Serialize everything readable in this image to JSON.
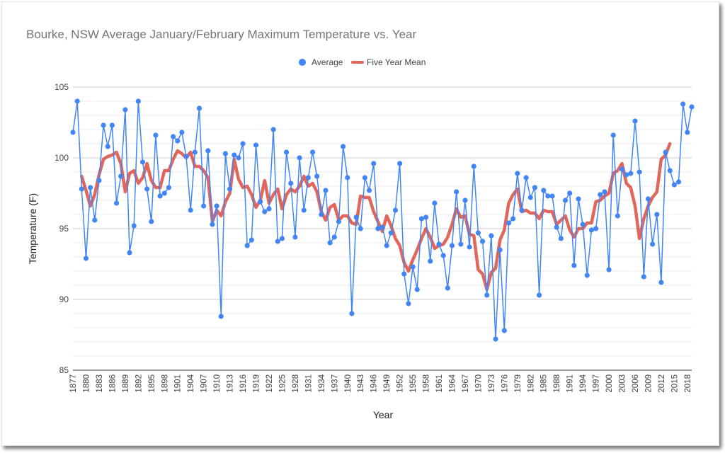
{
  "chart_data": {
    "type": "line",
    "title": "Bourke, NSW Average January/February Maximum Temperature vs. Year",
    "xlabel": "Year",
    "ylabel": "Temperature (F)",
    "ylim": [
      85,
      105
    ],
    "yticks": [
      "85",
      "90",
      "95",
      "100",
      "105"
    ],
    "xlim": [
      1877,
      2019
    ],
    "xticks": [
      "1877",
      "1880",
      "1883",
      "1886",
      "1889",
      "1892",
      "1895",
      "1898",
      "1901",
      "1904",
      "1907",
      "1910",
      "1913",
      "1916",
      "1919",
      "1922",
      "1925",
      "1928",
      "1931",
      "1934",
      "1937",
      "1940",
      "1943",
      "1946",
      "1949",
      "1952",
      "1955",
      "1958",
      "1961",
      "1964",
      "1967",
      "1970",
      "1973",
      "1976",
      "1979",
      "1982",
      "1985",
      "1988",
      "1991",
      "1994",
      "1997",
      "2000",
      "2003",
      "2006",
      "2009",
      "2012",
      "2015",
      "2018"
    ],
    "grid": true,
    "legend_position": "top",
    "series": [
      {
        "name": "Average",
        "color": "#4285f4",
        "style": "line-with-points",
        "x_start": 1877,
        "values": [
          101.8,
          104.0,
          97.8,
          92.9,
          97.9,
          95.6,
          98.4,
          102.3,
          100.8,
          102.3,
          96.8,
          98.7,
          103.4,
          93.3,
          95.2,
          104.0,
          99.7,
          97.8,
          95.5,
          101.6,
          97.3,
          97.5,
          97.9,
          101.5,
          101.2,
          101.8,
          100.1,
          96.3,
          100.4,
          103.5,
          96.6,
          100.5,
          95.3,
          96.6,
          88.8,
          100.3,
          97.8,
          100.2,
          100.0,
          101.0,
          93.8,
          94.2,
          100.9,
          96.9,
          96.2,
          96.4,
          102.0,
          94.1,
          94.3,
          100.4,
          98.2,
          94.4,
          100.0,
          96.3,
          98.6,
          100.4,
          98.7,
          96.0,
          97.7,
          94.0,
          94.4,
          95.5,
          100.8,
          98.6,
          89.0,
          95.8,
          95.0,
          98.6,
          97.7,
          99.6,
          95.0,
          95.1,
          93.8,
          94.7,
          96.3,
          99.6,
          91.8,
          89.7,
          92.3,
          90.7,
          95.7,
          95.8,
          92.7,
          96.8,
          93.9,
          93.1,
          90.8,
          93.8,
          97.6,
          93.9,
          97.0,
          93.7,
          99.4,
          94.7,
          94.1,
          90.3,
          94.5,
          87.2,
          93.5,
          87.8,
          95.4,
          95.7,
          98.9,
          96.3,
          98.6,
          97.2,
          97.9,
          90.3,
          97.7,
          97.3,
          97.3,
          95.1,
          94.3,
          97.0,
          97.5,
          92.4,
          97.1,
          95.3,
          91.7,
          94.9,
          95.0,
          97.4,
          97.6,
          92.1,
          101.6,
          95.9,
          99.2,
          98.8,
          98.9,
          102.6,
          99.0,
          91.6,
          97.1,
          93.9,
          96.0,
          91.2,
          100.4,
          99.1,
          98.1,
          98.3,
          103.8,
          101.8,
          103.6
        ]
      },
      {
        "name": "Five Year Mean",
        "color": "#db4437",
        "style": "thick-line",
        "x_start": 1879,
        "values": [
          98.7,
          97.7,
          96.6,
          97.4,
          98.8,
          99.9,
          100.1,
          100.2,
          100.4,
          99.6,
          97.6,
          98.9,
          99.1,
          98.2,
          98.6,
          99.6,
          98.4,
          97.9,
          97.9,
          99.1,
          99.1,
          99.9,
          100.5,
          100.3,
          100.0,
          100.4,
          99.4,
          99.4,
          99.1,
          98.6,
          95.5,
          96.3,
          95.9,
          96.9,
          97.5,
          99.9,
          98.5,
          97.9,
          98.0,
          97.4,
          96.5,
          97.0,
          98.4,
          96.8,
          97.4,
          97.8,
          96.4,
          97.4,
          97.8,
          97.6,
          98.0,
          98.7,
          98.0,
          98.2,
          97.6,
          96.2,
          95.6,
          96.5,
          96.7,
          95.6,
          95.9,
          95.9,
          95.4,
          95.3,
          97.3,
          97.2,
          97.2,
          96.2,
          95.5,
          94.8,
          95.9,
          95.2,
          94.3,
          93.8,
          92.6,
          92.0,
          92.8,
          93.5,
          94.3,
          95.0,
          94.4,
          93.6,
          93.8,
          93.9,
          94.4,
          95.3,
          96.4,
          95.8,
          95.9,
          94.6,
          94.5,
          92.1,
          91.8,
          90.7,
          91.9,
          92.2,
          94.2,
          94.9,
          96.8,
          97.4,
          97.8,
          96.2,
          96.3,
          96.1,
          96.1,
          95.7,
          96.3,
          96.2,
          96.2,
          95.3,
          95.6,
          95.9,
          94.9,
          94.4,
          95.0,
          95.0,
          95.4,
          95.4,
          96.9,
          97.0,
          97.3,
          97.5,
          98.9,
          99.1,
          99.6,
          98.2,
          97.9,
          96.6,
          94.3,
          95.7,
          96.6,
          97.2,
          97.6,
          99.9,
          100.2,
          101.0
        ]
      }
    ]
  }
}
